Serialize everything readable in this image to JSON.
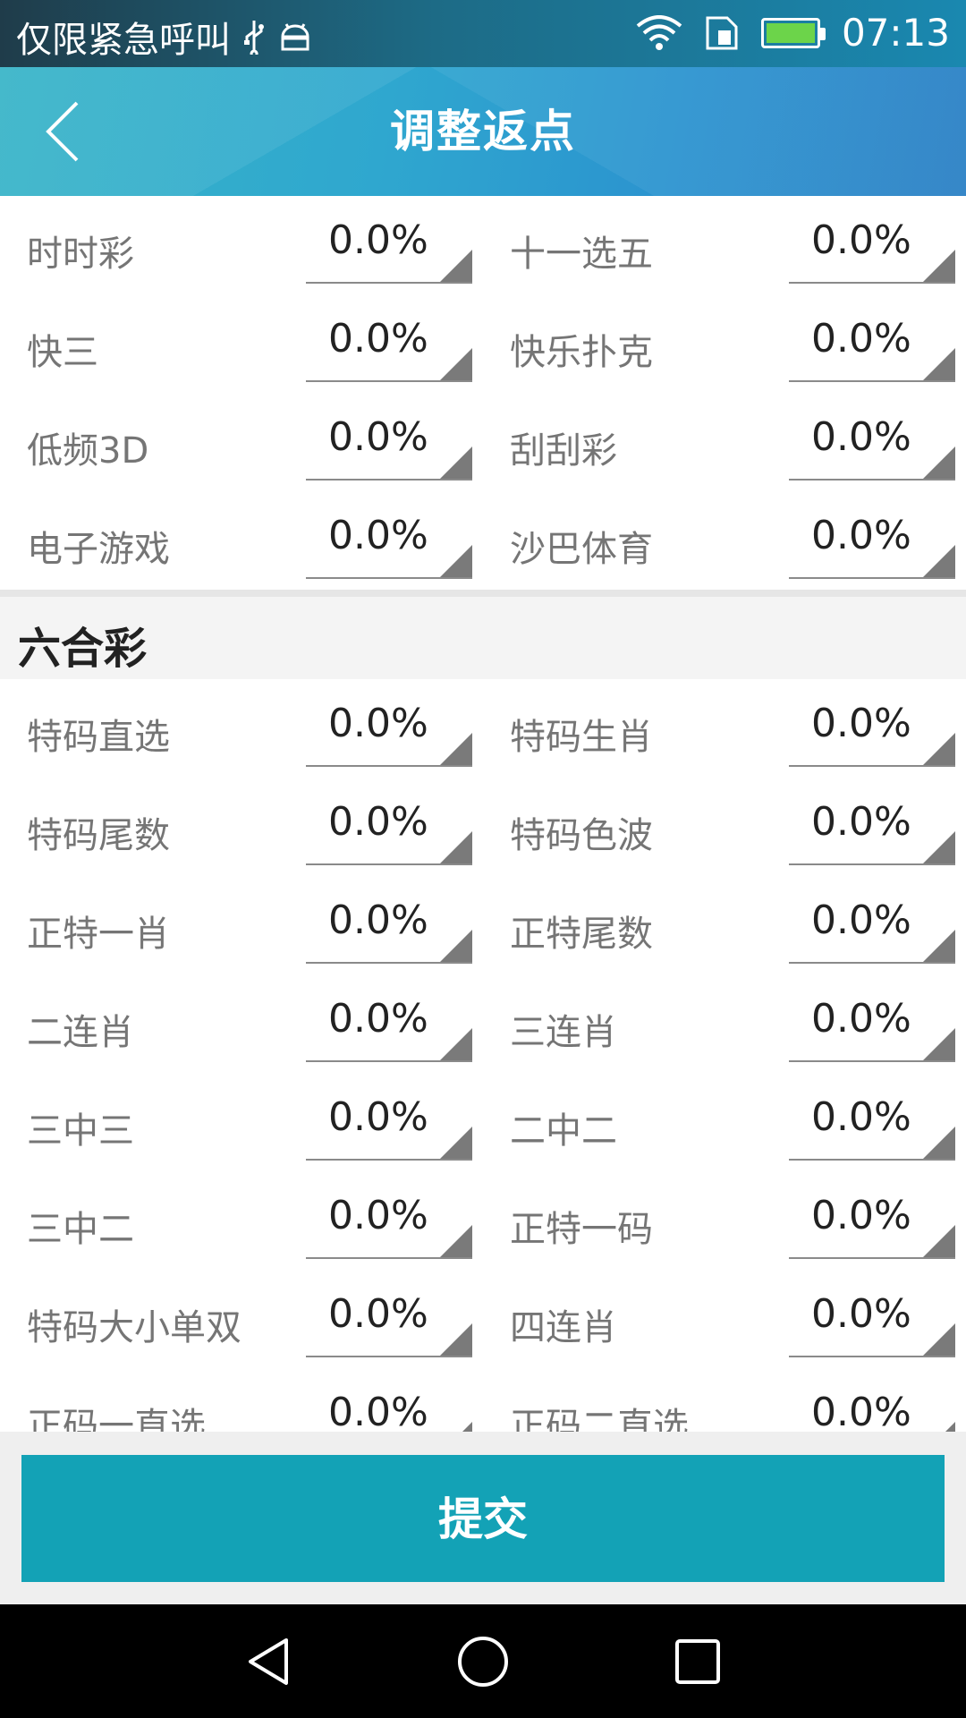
{
  "status_bar": {
    "carrier_text": "仅限紧急呼叫",
    "time": "07:13",
    "icons": [
      "usb-icon",
      "android-debug-icon",
      "wifi-icon",
      "sim-icon",
      "battery-charging-icon"
    ],
    "battery_color": "#6cd44a"
  },
  "header": {
    "title": "调整返点",
    "back_icon": "chevron-left-icon"
  },
  "lottery_rows": [
    [
      {
        "label": "时时彩",
        "value": "0.0%"
      },
      {
        "label": "十一选五",
        "value": "0.0%"
      }
    ],
    [
      {
        "label": "快三",
        "value": "0.0%"
      },
      {
        "label": "快乐扑克",
        "value": "0.0%"
      }
    ],
    [
      {
        "label": "低频3D",
        "value": "0.0%"
      },
      {
        "label": "刮刮彩",
        "value": "0.0%"
      }
    ],
    [
      {
        "label": "电子游戏",
        "value": "0.0%"
      },
      {
        "label": "沙巴体育",
        "value": "0.0%"
      }
    ]
  ],
  "liuhecai": {
    "title": "六合彩",
    "rows": [
      [
        {
          "label": "特码直选",
          "value": "0.0%"
        },
        {
          "label": "特码生肖",
          "value": "0.0%"
        }
      ],
      [
        {
          "label": "特码尾数",
          "value": "0.0%"
        },
        {
          "label": "特码色波",
          "value": "0.0%"
        }
      ],
      [
        {
          "label": "正特一肖",
          "value": "0.0%"
        },
        {
          "label": "正特尾数",
          "value": "0.0%"
        }
      ],
      [
        {
          "label": "二连肖",
          "value": "0.0%"
        },
        {
          "label": "三连肖",
          "value": "0.0%"
        }
      ],
      [
        {
          "label": "三中三",
          "value": "0.0%"
        },
        {
          "label": "二中二",
          "value": "0.0%"
        }
      ],
      [
        {
          "label": "三中二",
          "value": "0.0%"
        },
        {
          "label": "正特一码",
          "value": "0.0%"
        }
      ],
      [
        {
          "label": "特码大小单双",
          "value": "0.0%"
        },
        {
          "label": "四连肖",
          "value": "0.0%"
        }
      ],
      [
        {
          "label": "正码一直选",
          "value": "0.0%"
        },
        {
          "label": "正码二直选",
          "value": "0.0%"
        }
      ]
    ]
  },
  "footer": {
    "submit_label": "提交",
    "button_color": "#13a2b6"
  },
  "nav_bar": {
    "icons": [
      "back-triangle-icon",
      "home-circle-icon",
      "recents-square-icon"
    ]
  }
}
